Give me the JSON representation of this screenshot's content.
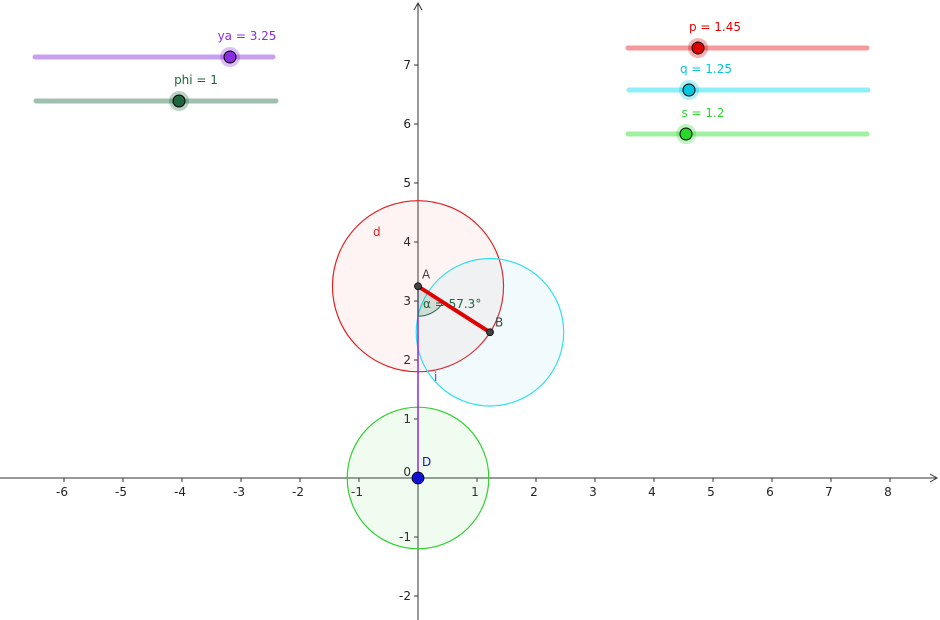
{
  "axes": {
    "xticks": [
      -6,
      -5,
      -4,
      -3,
      -2,
      -1,
      1,
      2,
      3,
      4,
      5,
      6,
      7,
      8
    ],
    "yticks": [
      -2,
      -1,
      0,
      1,
      2,
      3,
      4,
      5,
      6,
      7
    ]
  },
  "sliders": [
    {
      "label": "ya = 3.25",
      "color": "#8b2be2",
      "track": "#c9a0f0"
    },
    {
      "label": "phi = 1",
      "color": "#1f6640",
      "track": "#9fbfaf"
    },
    {
      "label": "p = 1.45",
      "color": "#e00000",
      "track": "#f59a9a"
    },
    {
      "label": "q = 1.25",
      "color": "#00c8e0",
      "track": "#8deff8"
    },
    {
      "label": "s = 1.2",
      "color": "#2ad82a",
      "track": "#9ff09f"
    }
  ],
  "points": [
    {
      "label": "A",
      "x": 0,
      "y": 3.25
    },
    {
      "label": "B",
      "x": 1.22,
      "y": 2.47
    },
    {
      "label": "D",
      "x": 0,
      "y": 0
    }
  ],
  "circles": [
    {
      "label": "d",
      "center": "A",
      "radius": 1.45,
      "color": "#e02020",
      "fill": "rgba(240,120,120,0.08)"
    },
    {
      "center": "B",
      "radius": 1.25,
      "color": "#30e0f0",
      "fill": "rgba(120,220,240,0.10)"
    },
    {
      "center": "D",
      "radius": 1.2,
      "color": "#30d030",
      "fill": "rgba(120,230,120,0.10)"
    }
  ],
  "segment_i": {
    "label": "i",
    "color": "#8b2be2"
  },
  "angle": {
    "label": "α = 57.3°",
    "color": "#1f6640"
  }
}
